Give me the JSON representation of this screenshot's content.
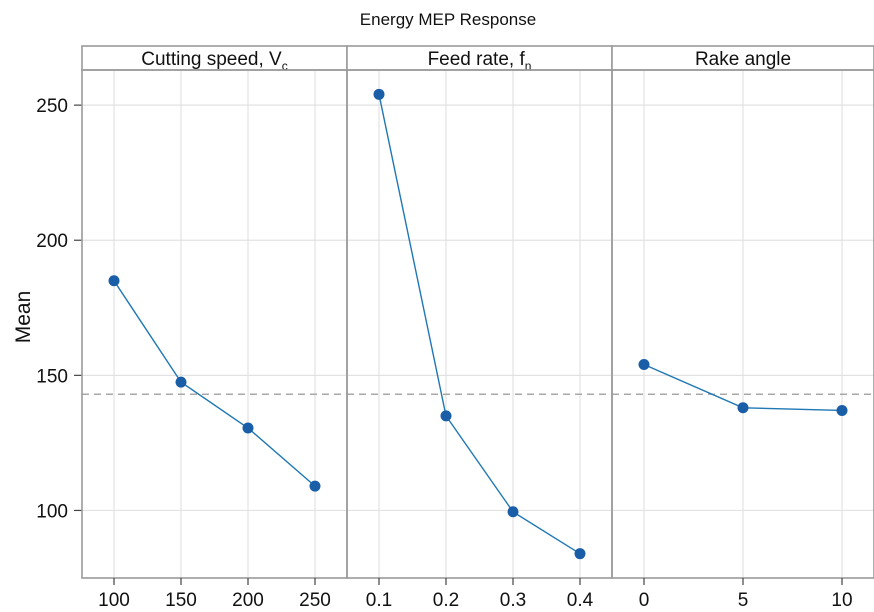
{
  "chart_data": {
    "type": "line",
    "title": "Energy MEP Response",
    "ylabel": "Mean",
    "ylim": [
      75,
      263
    ],
    "yticks": [
      100,
      150,
      200,
      250
    ],
    "grid": true,
    "overall_mean": 143,
    "line_color": "#1f77b4",
    "marker_color": "#1b5ea8",
    "panels": [
      {
        "label_main": "Cutting speed, V",
        "label_sub": "c",
        "x": [
          "100",
          "150",
          "200",
          "250"
        ],
        "values": [
          185,
          147.5,
          130.5,
          109
        ]
      },
      {
        "label_main": "Feed rate, f",
        "label_sub": "n",
        "x": [
          "0.1",
          "0.2",
          "0.3",
          "0.4"
        ],
        "values": [
          254,
          135,
          99.5,
          84
        ]
      },
      {
        "label_main": "Rake angle",
        "label_sub": "",
        "x": [
          "0",
          "5",
          "10"
        ],
        "values": [
          154,
          138,
          137
        ]
      }
    ]
  }
}
